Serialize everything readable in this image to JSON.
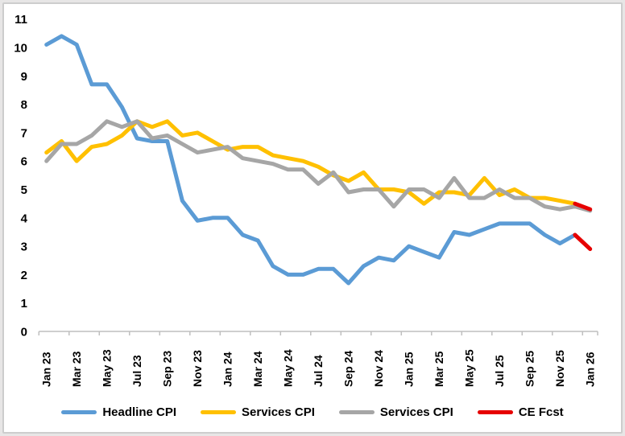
{
  "chart_data": {
    "type": "line",
    "title": "",
    "xlabel": "",
    "ylabel": "",
    "ylim": [
      0,
      11
    ],
    "grid": false,
    "legend_position": "bottom",
    "x_categories": [
      "Jan 23",
      "Feb 23",
      "Mar 23",
      "Apr 23",
      "May 23",
      "Jun 23",
      "Jul 23",
      "Aug 23",
      "Sep 23",
      "Oct 23",
      "Nov 23",
      "Dec 23",
      "Jan 24",
      "Feb 24",
      "Mar 24",
      "Apr 24",
      "May 24",
      "Jun 24",
      "Jul 24",
      "Aug 24",
      "Sep 24",
      "Oct 24",
      "Nov 24",
      "Dec 24",
      "Jan 25",
      "Feb 25",
      "Mar 25",
      "Apr 25",
      "May 25",
      "Jun 25",
      "Jul 25",
      "Aug 25",
      "Sep 25",
      "Oct 25",
      "Nov 25",
      "Dec 25",
      "Jan 26"
    ],
    "x_tick_labels": [
      "Jan 23",
      "Mar 23",
      "May 23",
      "Jul 23",
      "Sep 23",
      "Nov 23",
      "Jan 24",
      "Mar 24",
      "May 24",
      "Jul 24",
      "Sep 24",
      "Nov 24",
      "Jan 25",
      "Mar 25",
      "May 25",
      "Jul 25",
      "Sep 25",
      "Nov 25",
      "Jan 26"
    ],
    "y_ticks": [
      0,
      1,
      2,
      3,
      4,
      5,
      6,
      7,
      8,
      9,
      10,
      11
    ],
    "series": [
      {
        "name": "Headline CPI",
        "color": "#5b9bd5",
        "values": [
          10.1,
          10.4,
          10.1,
          8.7,
          8.7,
          7.9,
          6.8,
          6.7,
          6.7,
          4.6,
          3.9,
          4.0,
          4.0,
          3.4,
          3.2,
          2.3,
          2.0,
          2.0,
          2.2,
          2.2,
          1.7,
          2.3,
          2.6,
          2.5,
          3.0,
          2.8,
          2.6,
          3.5,
          3.4,
          3.6,
          3.8,
          3.8,
          3.8,
          3.4,
          3.1,
          3.4,
          null
        ]
      },
      {
        "name": "Services CPI",
        "color": "#ffc000",
        "values": [
          6.3,
          6.7,
          6.0,
          6.5,
          6.6,
          6.9,
          7.4,
          7.2,
          7.4,
          6.9,
          7.0,
          6.7,
          6.4,
          6.5,
          6.5,
          6.2,
          6.1,
          6.0,
          5.8,
          5.5,
          5.3,
          5.6,
          5.0,
          5.0,
          4.9,
          4.5,
          4.9,
          4.9,
          4.8,
          5.4,
          4.8,
          5.0,
          4.7,
          4.7,
          4.6,
          4.5,
          null
        ]
      },
      {
        "name": "Services CPI",
        "color": "#a6a6a6",
        "values": [
          6.0,
          6.6,
          6.6,
          6.9,
          7.4,
          7.2,
          7.4,
          6.8,
          6.9,
          6.6,
          6.3,
          6.4,
          6.5,
          6.1,
          6.0,
          5.9,
          5.7,
          5.7,
          5.2,
          5.6,
          4.9,
          5.0,
          5.0,
          4.4,
          5.0,
          5.0,
          4.7,
          5.4,
          4.7,
          4.7,
          5.0,
          4.7,
          4.7,
          4.4,
          4.3,
          4.4,
          4.25
        ]
      },
      {
        "name": "CE Fcst",
        "color": "#e60000",
        "segments": [
          [
            [
              35,
              3.4
            ],
            [
              36,
              2.9
            ]
          ],
          [
            [
              35,
              4.5
            ],
            [
              36,
              4.3
            ]
          ]
        ]
      }
    ]
  },
  "legend": [
    {
      "label": "Headline CPI",
      "color": "#5b9bd5"
    },
    {
      "label": "Services CPI",
      "color": "#ffc000"
    },
    {
      "label": "Services CPI",
      "color": "#a6a6a6"
    },
    {
      "label": "CE Fcst",
      "color": "#e60000"
    }
  ],
  "axis": {
    "line_color": "#bfbfbf",
    "tick_color": "#bfbfbf",
    "label_color": "#000000"
  }
}
